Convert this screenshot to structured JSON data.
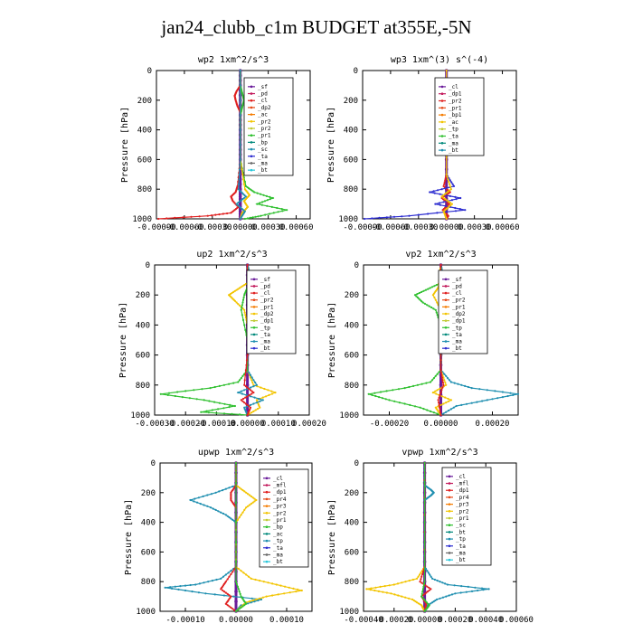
{
  "page": {
    "title": "jan24_clubb_c1m  BUDGET at355E,-5N"
  },
  "chart_data": [
    {
      "type": "line",
      "title": "wp2  1xm^2/s^3",
      "ylabel": "Pressure [hPa]",
      "ylim": [
        1000,
        0
      ],
      "yticks": [
        0,
        200,
        400,
        600,
        800,
        1000
      ],
      "xlim": [
        -0.0009,
        0.00075
      ],
      "xticks": [
        -0.0009,
        -0.0006,
        -0.0003,
        0.0,
        0.0003,
        0.0006
      ],
      "xtick_labels": [
        "-0.00090",
        "-0.00060",
        "-0.00030",
        "0.00000",
        "0.00030",
        "0.00060"
      ],
      "legend": [
        "_sf",
        "_pd",
        "_cl",
        "_dp2",
        "_ac",
        "_pr2",
        "_pr2",
        "_pr1",
        "_bp",
        "_sc",
        "_ta",
        "_ma",
        "_bt"
      ],
      "series": [
        {
          "color": "#6a1b9a",
          "p": [
            0,
            100,
            200,
            300,
            400,
            500,
            600,
            700,
            800,
            850,
            900,
            950,
            1000
          ],
          "values": [
            0,
            0,
            0,
            0,
            0,
            0,
            0,
            0,
            0,
            0,
            0,
            0,
            0
          ]
        },
        {
          "color": "#e02020",
          "p": [
            0,
            100,
            140,
            170,
            200,
            240,
            280,
            400,
            600,
            780,
            820,
            850,
            880,
            920,
            960,
            980,
            1000
          ],
          "values": [
            0,
            0,
            -4e-05,
            -6e-05,
            -5e-05,
            -3e-05,
            0,
            0,
            0,
            -3e-05,
            -5e-05,
            -0.0001,
            -8e-05,
            -2e-05,
            -0.0001,
            -0.00035,
            -0.00088
          ]
        },
        {
          "color": "#30c030",
          "p": [
            0,
            100,
            150,
            200,
            250,
            300,
            400,
            600,
            780,
            820,
            860,
            900,
            940,
            980,
            1000
          ],
          "values": [
            0,
            0,
            2e-05,
            4e-05,
            2e-05,
            0,
            0,
            0,
            6e-05,
            0.00015,
            0.00035,
            0.00018,
            0.0005,
            0.00022,
            5e-05
          ]
        },
        {
          "color": "#f2c400",
          "p": [
            0,
            600,
            800,
            840,
            880,
            920,
            960,
            1000
          ],
          "values": [
            0,
            0,
            5e-05,
            0.0001,
            4e-05,
            8e-05,
            2e-05,
            0
          ]
        },
        {
          "color": "#1f8fb0",
          "p": [
            0,
            600,
            800,
            850,
            900,
            950,
            1000
          ],
          "values": [
            0,
            0,
            -2e-05,
            6e-05,
            -4e-05,
            5e-05,
            0
          ]
        }
      ]
    },
    {
      "type": "line",
      "title": "wp3  1xm^(3) s^(-4)",
      "ylabel": "Pressure [hPa]",
      "ylim": [
        1000,
        0
      ],
      "yticks": [
        0,
        200,
        400,
        600,
        800,
        1000
      ],
      "xlim": [
        -0.0009,
        0.00075
      ],
      "xticks": [
        -0.0009,
        -0.0006,
        -0.0003,
        0.0,
        0.0003,
        0.0006
      ],
      "xtick_labels": [
        "-0.00090",
        "-0.00060",
        "-0.00030",
        "0.00000",
        "0.00030",
        "0.00060"
      ],
      "legend": [
        "_cl",
        "_dp1",
        "_pr2",
        "_pr1",
        "_bp1",
        "_ac",
        "_tp",
        "_ta",
        "_ma",
        "_bt"
      ],
      "series": [
        {
          "color": "#6a1b9a",
          "p": [
            0,
            200,
            400,
            600,
            800,
            1000
          ],
          "values": [
            0,
            0,
            0,
            0,
            0,
            0
          ]
        },
        {
          "color": "#e02020",
          "p": [
            0,
            400,
            700,
            780,
            820,
            860,
            900,
            940,
            980,
            1000
          ],
          "values": [
            0,
            0,
            0,
            -3e-05,
            4e-05,
            -5e-05,
            3e-05,
            -4e-05,
            2e-05,
            0
          ]
        },
        {
          "color": "#2d2dd0",
          "p": [
            0,
            700,
            780,
            820,
            860,
            900,
            940,
            980,
            1000
          ],
          "values": [
            0,
            0,
            8e-05,
            -0.00018,
            0.00015,
            -0.00012,
            0.0002,
            -0.0004,
            -0.00088
          ]
        },
        {
          "color": "#f2c400",
          "p": [
            0,
            700,
            800,
            850,
            900,
            950,
            1000
          ],
          "values": [
            0,
            0,
            5e-05,
            -5e-05,
            6e-05,
            -3e-05,
            0
          ]
        }
      ]
    },
    {
      "type": "line",
      "title": "up2  1xm^2/s^3",
      "ylabel": "Pressure [hPa]",
      "ylim": [
        1000,
        0
      ],
      "yticks": [
        0,
        200,
        400,
        600,
        800,
        1000
      ],
      "xlim": [
        -0.0003,
        0.0002
      ],
      "xticks": [
        -0.0003,
        -0.0002,
        -0.0001,
        0.0,
        0.0001,
        0.0002
      ],
      "xtick_labels": [
        "-0.00030",
        "-0.00020",
        "-0.00010",
        "0.00000",
        "0.00010",
        "0.00020"
      ],
      "legend": [
        "_sf",
        "_pd",
        "_cl",
        "_pr2",
        "_pr1",
        "_dp2",
        "_dp1",
        "_tp",
        "_ta",
        "_ma",
        "_bt"
      ],
      "series": [
        {
          "color": "#6a1b9a",
          "p": [
            0,
            200,
            400,
            600,
            800,
            1000
          ],
          "values": [
            0,
            0,
            0,
            0,
            0,
            0
          ]
        },
        {
          "color": "#f2c400",
          "p": [
            0,
            120,
            160,
            200,
            240,
            300,
            400,
            700,
            800,
            850,
            900,
            950,
            1000
          ],
          "values": [
            0,
            0,
            -3e-05,
            -6e-05,
            -4e-05,
            -1e-05,
            0,
            0,
            2e-05,
            9e-05,
            3e-05,
            4e-05,
            0
          ]
        },
        {
          "color": "#1f8fb0",
          "p": [
            0,
            120,
            160,
            200,
            230,
            270,
            400,
            700,
            800,
            850,
            900,
            950,
            1000
          ],
          "values": [
            0,
            2e-05,
            6e-05,
            0.00011,
            8e-05,
            3e-05,
            0,
            0,
            3e-05,
            -3e-05,
            5e-05,
            -1e-05,
            0
          ]
        },
        {
          "color": "#30c030",
          "p": [
            0,
            150,
            200,
            300,
            500,
            700,
            780,
            820,
            860,
            900,
            940,
            980,
            1000
          ],
          "values": [
            0,
            0,
            -1e-05,
            -2e-05,
            0,
            0,
            -3e-05,
            -0.00012,
            -0.00028,
            -0.00014,
            -4e-05,
            -0.00015,
            0
          ]
        },
        {
          "color": "#e02020",
          "p": [
            0,
            600,
            800,
            850,
            900,
            950,
            1000
          ],
          "values": [
            0,
            0,
            -1e-05,
            2e-05,
            -2e-05,
            1e-05,
            0
          ]
        }
      ]
    },
    {
      "type": "line",
      "title": "vp2  1xm^2/s^3",
      "ylabel": "Pressure [hPa]",
      "ylim": [
        1000,
        0
      ],
      "yticks": [
        0,
        200,
        400,
        600,
        800,
        1000
      ],
      "xlim": [
        -0.0003,
        0.0003
      ],
      "xticks": [
        -0.0002,
        0.0,
        0.0002
      ],
      "xtick_labels": [
        "-0.00020",
        "0.00000",
        "0.00020"
      ],
      "legend": [
        "_sf",
        "_pd",
        "_cl",
        "_pr2",
        "_pr1",
        "_dp2",
        "_dp1",
        "_tp",
        "_ta",
        "_ma",
        "_bt"
      ],
      "series": [
        {
          "color": "#6a1b9a",
          "p": [
            0,
            200,
            400,
            600,
            800,
            1000
          ],
          "values": [
            0,
            0,
            0,
            0,
            0,
            0
          ]
        },
        {
          "color": "#1f8fb0",
          "p": [
            0,
            120,
            160,
            200,
            240,
            300,
            400,
            700,
            780,
            820,
            860,
            900,
            940,
            1000
          ],
          "values": [
            0,
            2e-05,
            7e-05,
            0.00013,
            9e-05,
            3e-05,
            0,
            0,
            4e-05,
            0.00012,
            0.0003,
            0.00018,
            6e-05,
            0
          ]
        },
        {
          "color": "#30c030",
          "p": [
            0,
            120,
            160,
            200,
            250,
            300,
            400,
            700,
            780,
            820,
            860,
            900,
            950,
            1000
          ],
          "values": [
            0,
            0,
            -5e-05,
            -0.0001,
            -7e-05,
            -2e-05,
            0,
            0,
            -4e-05,
            -0.00014,
            -0.00028,
            -0.0002,
            -8e-05,
            0
          ]
        },
        {
          "color": "#f2c400",
          "p": [
            0,
            150,
            200,
            300,
            700,
            800,
            850,
            900,
            950,
            1000
          ],
          "values": [
            0,
            -1e-05,
            -3e-05,
            0,
            0,
            2e-05,
            -3e-05,
            4e-05,
            -2e-05,
            0
          ]
        },
        {
          "color": "#e02020",
          "p": [
            0,
            700,
            800,
            900,
            1000
          ],
          "values": [
            0,
            0,
            1e-05,
            -1e-05,
            0
          ]
        }
      ]
    },
    {
      "type": "line",
      "title": "upwp  1xm^2/s^3",
      "ylabel": "Pressure [hPa]",
      "ylim": [
        1000,
        0
      ],
      "yticks": [
        0,
        200,
        400,
        600,
        800,
        1000
      ],
      "xlim": [
        -0.00015,
        0.00015
      ],
      "xticks": [
        -0.0001,
        0.0,
        0.0001
      ],
      "xtick_labels": [
        "-0.00010",
        "0.00000",
        "0.00010"
      ],
      "legend": [
        "_cl",
        "_mfl",
        "_dp1",
        "_pr4",
        "_pr3",
        "_pr2",
        "_pr1",
        "_bp",
        "_ac",
        "_tp",
        "_ta",
        "_ma",
        "_bt"
      ],
      "series": [
        {
          "color": "#6a1b9a",
          "p": [
            0,
            200,
            400,
            600,
            800,
            1000
          ],
          "values": [
            0,
            0,
            0,
            0,
            0,
            0
          ]
        },
        {
          "color": "#1f8fb0",
          "p": [
            0,
            150,
            200,
            250,
            300,
            350,
            400,
            700,
            780,
            820,
            840,
            880,
            920,
            960,
            1000
          ],
          "values": [
            0,
            0,
            -4e-05,
            -9e-05,
            -5e-05,
            -2e-05,
            0,
            0,
            -3e-05,
            -8e-05,
            -0.00014,
            -6e-05,
            5e-05,
            1e-05,
            0
          ]
        },
        {
          "color": "#f2c400",
          "p": [
            0,
            150,
            200,
            250,
            300,
            400,
            700,
            780,
            820,
            860,
            900,
            940,
            1000
          ],
          "values": [
            0,
            0,
            2e-05,
            4e-05,
            2e-05,
            0,
            0,
            3e-05,
            8e-05,
            0.00013,
            6e-05,
            2e-05,
            0
          ]
        },
        {
          "color": "#e02020",
          "p": [
            0,
            150,
            200,
            250,
            300,
            700,
            800,
            850,
            900,
            950,
            1000
          ],
          "values": [
            0,
            0,
            -1e-05,
            -1e-05,
            0,
            0,
            -2e-05,
            -3e-05,
            -1e-05,
            -2e-05,
            0
          ]
        },
        {
          "color": "#30c030",
          "p": [
            0,
            800,
            900,
            950,
            1000
          ],
          "values": [
            0,
            0,
            1e-05,
            2e-05,
            0
          ]
        }
      ]
    },
    {
      "type": "line",
      "title": "vpwp  1xm^2/s^3",
      "ylabel": "Pressure [hPa]",
      "ylim": [
        1000,
        0
      ],
      "yticks": [
        0,
        200,
        400,
        600,
        800,
        1000
      ],
      "xlim": [
        -0.0004,
        0.0006
      ],
      "xticks": [
        -0.0004,
        -0.0002,
        0.0,
        0.0002,
        0.0004,
        0.0006
      ],
      "xtick_labels": [
        "-0.00040",
        "-0.00020",
        "0.00000",
        "0.00020",
        "0.00040",
        "0.00060"
      ],
      "legend": [
        "_cl",
        "_mfl",
        "_dp1",
        "_pr4",
        "_pr3",
        "_pr2",
        "_pr1",
        "_sc",
        "_bt",
        "_tp",
        "_ta",
        "_ma",
        "_bt"
      ],
      "series": [
        {
          "color": "#6a1b9a",
          "p": [
            0,
            200,
            400,
            600,
            800,
            1000
          ],
          "values": [
            0,
            0,
            0,
            0,
            0,
            0
          ]
        },
        {
          "color": "#1f8fb0",
          "p": [
            0,
            150,
            180,
            200,
            220,
            250,
            700,
            780,
            820,
            850,
            880,
            920,
            960,
            1000
          ],
          "values": [
            0,
            0,
            4e-05,
            6e-05,
            4e-05,
            0,
            0,
            5e-05,
            0.00015,
            0.00042,
            0.0002,
            8e-05,
            2e-05,
            0
          ]
        },
        {
          "color": "#f2c400",
          "p": [
            0,
            700,
            780,
            820,
            850,
            880,
            920,
            960,
            1000
          ],
          "values": [
            0,
            0,
            -5e-05,
            -0.0002,
            -0.00038,
            -0.00022,
            -8e-05,
            -2e-05,
            0
          ]
        },
        {
          "color": "#e02020",
          "p": [
            0,
            700,
            800,
            850,
            900,
            950,
            1000
          ],
          "values": [
            0,
            0,
            -3e-05,
            4e-05,
            -2e-05,
            1e-05,
            0
          ]
        },
        {
          "color": "#30c030",
          "p": [
            0,
            800,
            900,
            960,
            1000
          ],
          "values": [
            0,
            0,
            -2e-05,
            3e-05,
            0
          ]
        }
      ]
    }
  ]
}
